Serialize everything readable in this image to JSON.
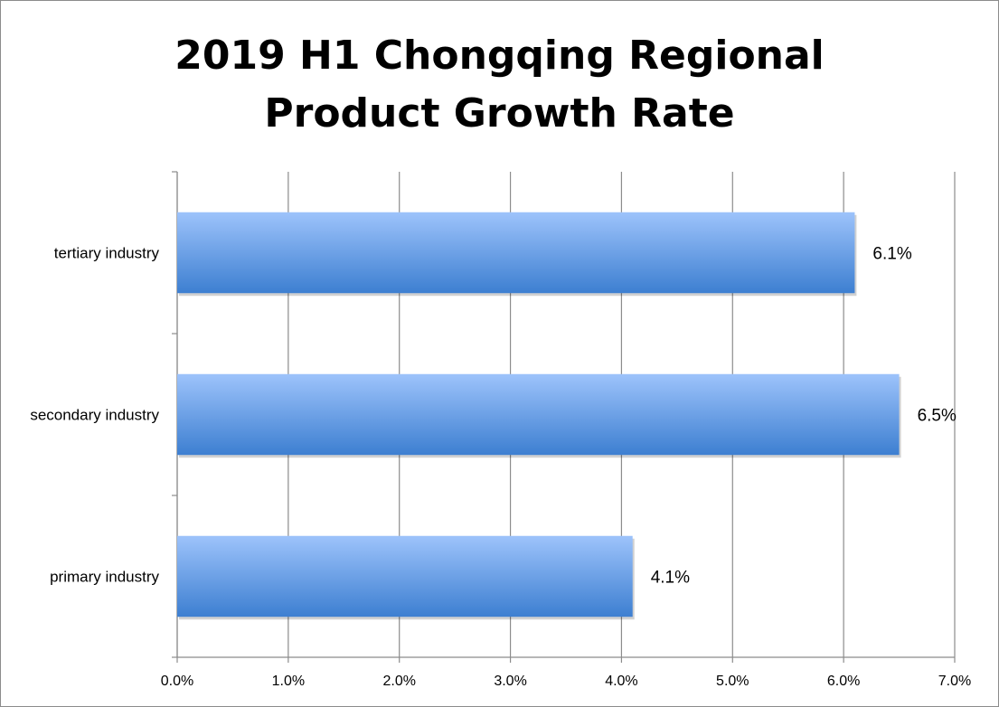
{
  "chart_data": {
    "type": "bar",
    "orientation": "horizontal",
    "title_lines": [
      "2019 H1 Chongqing Regional",
      "Product Growth Rate"
    ],
    "categories": [
      "tertiary industry",
      "secondary industry",
      "primary industry"
    ],
    "values": [
      6.1,
      6.5,
      4.1
    ],
    "data_labels": [
      "6.1%",
      "6.5%",
      "4.1%"
    ],
    "xlim": [
      0,
      7
    ],
    "x_ticks": [
      "0.0%",
      "1.0%",
      "2.0%",
      "3.0%",
      "4.0%",
      "5.0%",
      "6.0%",
      "7.0%"
    ],
    "grid": true,
    "legend": false,
    "colors": {
      "bar_light": "#9dc3fb",
      "bar_dark": "#3d7fd1",
      "grid": "#8c8c8c"
    }
  }
}
